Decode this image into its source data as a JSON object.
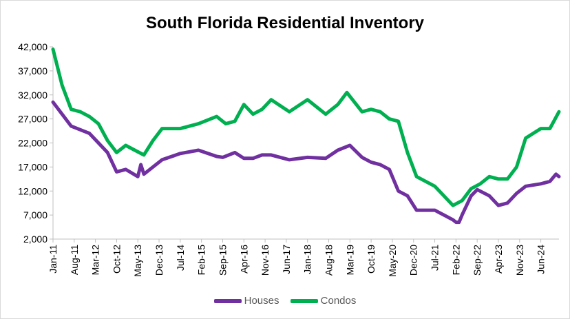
{
  "chart_data": {
    "type": "line",
    "title": "South Florida Residential Inventory",
    "y_ticks": [
      "2,000",
      "7,000",
      "12,000",
      "17,000",
      "22,000",
      "27,000",
      "32,000",
      "37,000",
      "42,000"
    ],
    "ylim": [
      2000,
      42000
    ],
    "x_tick_labels": [
      "Jan-11",
      "Aug-11",
      "Mar-12",
      "Oct-12",
      "May-13",
      "Dec-13",
      "Jul-14",
      "Feb-15",
      "Sep-15",
      "Apr-16",
      "Nov-16",
      "Jun-17",
      "Jan-18",
      "Aug-18",
      "Mar-19",
      "Oct-19",
      "May-20",
      "Dec-20",
      "Jul-21",
      "Feb-22",
      "Sep-22",
      "Apr-23",
      "Nov-23",
      "Jun-24"
    ],
    "x_start": "Jan-11",
    "x_end": "Dec-24",
    "grid": false,
    "legend_position": "bottom",
    "series": [
      {
        "name": "Houses",
        "color": "#7030a0",
        "x": [
          "Jan-11",
          "Jul-11",
          "Jan-12",
          "Jul-12",
          "Oct-12",
          "Jan-13",
          "May-13",
          "Jun-13",
          "Jul-13",
          "Jan-14",
          "Jul-14",
          "Jan-15",
          "Jul-15",
          "Sep-15",
          "Jan-16",
          "Apr-16",
          "Jul-16",
          "Oct-16",
          "Jan-17",
          "Jul-17",
          "Jan-18",
          "Jul-18",
          "Nov-18",
          "Mar-19",
          "Jul-19",
          "Oct-19",
          "Jan-20",
          "Apr-20",
          "Jul-20",
          "Oct-20",
          "Jan-21",
          "Jul-21",
          "Oct-21",
          "Jan-22",
          "Feb-22",
          "Mar-22",
          "Apr-22",
          "Jul-22",
          "Sep-22",
          "Jan-23",
          "Apr-23",
          "Jul-23",
          "Oct-23",
          "Jan-24",
          "Jun-24",
          "Sep-24",
          "Nov-24",
          "Dec-24"
        ],
        "y": [
          30500,
          25500,
          24000,
          20000,
          16000,
          16500,
          15000,
          17500,
          15500,
          18500,
          19800,
          20500,
          19200,
          19000,
          20000,
          18800,
          18800,
          19500,
          19500,
          18500,
          19000,
          18800,
          20500,
          21500,
          19000,
          18000,
          17500,
          16500,
          12000,
          11000,
          8000,
          8000,
          7000,
          6000,
          5500,
          5500,
          7000,
          11000,
          12300,
          11000,
          9000,
          9500,
          11500,
          13000,
          13500,
          14000,
          15500,
          15000
        ]
      },
      {
        "name": "Condos",
        "color": "#00b050",
        "x": [
          "Jan-11",
          "Apr-11",
          "Jul-11",
          "Oct-11",
          "Jan-12",
          "Apr-12",
          "Jul-12",
          "Oct-12",
          "Jan-13",
          "Apr-13",
          "Jul-13",
          "Oct-13",
          "Jan-14",
          "Jul-14",
          "Jan-15",
          "Jul-15",
          "Oct-15",
          "Jan-16",
          "Apr-16",
          "Jul-16",
          "Oct-16",
          "Jan-17",
          "Jul-17",
          "Jan-18",
          "Jul-18",
          "Nov-18",
          "Feb-19",
          "Jul-19",
          "Oct-19",
          "Jan-20",
          "Apr-20",
          "Jul-20",
          "Oct-20",
          "Jan-21",
          "Jul-21",
          "Jan-22",
          "Apr-22",
          "Jul-22",
          "Oct-22",
          "Jan-23",
          "Apr-23",
          "Jul-23",
          "Oct-23",
          "Jan-24",
          "Jun-24",
          "Sep-24",
          "Dec-24"
        ],
        "y": [
          41500,
          34000,
          29000,
          28500,
          27500,
          26000,
          22500,
          20000,
          21500,
          20500,
          19500,
          22500,
          25000,
          25000,
          26000,
          27500,
          26000,
          26500,
          30000,
          28000,
          29000,
          31000,
          28500,
          31000,
          28000,
          30000,
          32500,
          28500,
          29000,
          28500,
          27000,
          26500,
          20000,
          15000,
          13000,
          9000,
          10000,
          12500,
          13500,
          15000,
          14500,
          14500,
          17000,
          23000,
          25000,
          25000,
          28500
        ]
      }
    ]
  }
}
